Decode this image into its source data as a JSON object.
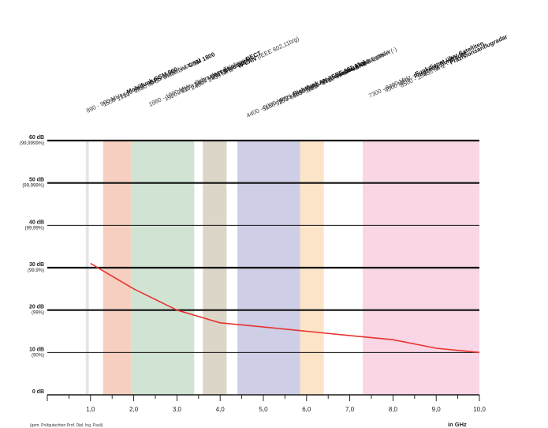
{
  "chart_data": {
    "type": "line",
    "title": "",
    "xlabel": "in GHz",
    "ylabel": "",
    "xlim": [
      0.0,
      10.0
    ],
    "ylim": [
      0,
      60
    ],
    "x_ticks": [
      "1,0",
      "2,0",
      "3,0",
      "4,0",
      "5,0",
      "6,0",
      "7,0",
      "8,0",
      "9,0",
      "10,0"
    ],
    "y_ticks": [
      {
        "value": 0,
        "label": "0 dB",
        "sub": ""
      },
      {
        "value": 10,
        "label": "10 dB",
        "sub": "(90%)"
      },
      {
        "value": 20,
        "label": "20 dB",
        "sub": "(99%)"
      },
      {
        "value": 30,
        "label": "30 dB",
        "sub": "(99,9%)"
      },
      {
        "value": 40,
        "label": "40 dB",
        "sub": "(99,99%)"
      },
      {
        "value": 50,
        "label": "50 dB",
        "sub": "(99,999%)"
      },
      {
        "value": 60,
        "label": "60 dB",
        "sub": "(99,9999%)"
      }
    ],
    "grid": true,
    "series": [
      {
        "color": "#e8332e",
        "x": [
          1.0,
          2.0,
          3.0,
          4.0,
          5.0,
          6.0,
          7.0,
          8.0,
          9.0,
          10.0
        ],
        "y": [
          31,
          25,
          20,
          17,
          16,
          15,
          14,
          13,
          11,
          10
        ]
      }
    ],
    "bands": [
      {
        "x0": 0.89,
        "x1": 0.96,
        "color": "#e0e0e0"
      },
      {
        "x0": 1.29,
        "x1": 1.94,
        "color": "#f6c7b5"
      },
      {
        "x0": 1.94,
        "x1": 3.4,
        "color": "#c9dfcc"
      },
      {
        "x0": 3.6,
        "x1": 4.15,
        "color": "#d6cfc0"
      },
      {
        "x0": 4.4,
        "x1": 5.85,
        "color": "#c6c6e2"
      },
      {
        "x0": 5.85,
        "x1": 6.4,
        "color": "#fbdfc0"
      },
      {
        "x0": 7.3,
        "x1": 10.0,
        "color": "#f7cfe0"
      }
    ],
    "band_labels": [
      {
        "range": "890 - 960 MHz - ",
        "name": "Mobilfunk GSM 900",
        "note": ""
      },
      {
        "range": "1559 - 1610 MHz - ",
        "name": "GPS",
        "note": " (zivile Nutzung)"
      },
      {
        "range": "1710 - 1880 MHz - Mobilfunk ",
        "name": "GSM 1800",
        "note": ""
      },
      {
        "range": "1880 - 1900 MHz - Schnurlose Telefone ",
        "name": "DECT",
        "note": ""
      },
      {
        "range": "1920 - 2170 MHz - ",
        "name": "UMTS",
        "note": " (ab 2003)"
      },
      {
        "range": "2400 - 2450 MHz - ",
        "name": "Bluetooth",
        "note": ""
      },
      {
        "range": "2400 - 2450 MHz - ",
        "name": "W-LAN",
        "note": " (IEEE 802,11b/g)"
      },
      {
        "range": "4400 - 5000 MHz - ",
        "name": "Richtfunk",
        "note": ""
      },
      {
        "range": "5150 - 5725 MHz - ",
        "name": "W-LAN (IEEE 802,11a)",
        "note": ""
      },
      {
        "range": "5255 - 5850 MHz - ",
        "name": "Wetterradar,",
        "note": " Flugzeugradar"
      },
      {
        "range": "5650 - 5850 MHz - ",
        "name": "Amateurfunk",
        "note": " 5 cm"
      },
      {
        "range": "5925 - 6425 MHz - ",
        "name": "VSAT",
        "note": " Satelliten (-)"
      },
      {
        "range": "7300 - 8400 MHz - ",
        "name": "Funkdienst über Satelliten",
        "note": ""
      },
      {
        "range": "9500 MHz - ",
        "name": "Flugzeug-Bordradar",
        "note": ""
      },
      {
        "range": "8500 - 10400 MHz - ",
        "name": "Präzisionsanflugradar",
        "note": ""
      }
    ],
    "footnote": "(gem. Prüfgutachten Prof. Dipl. Ing. Pauli)"
  }
}
